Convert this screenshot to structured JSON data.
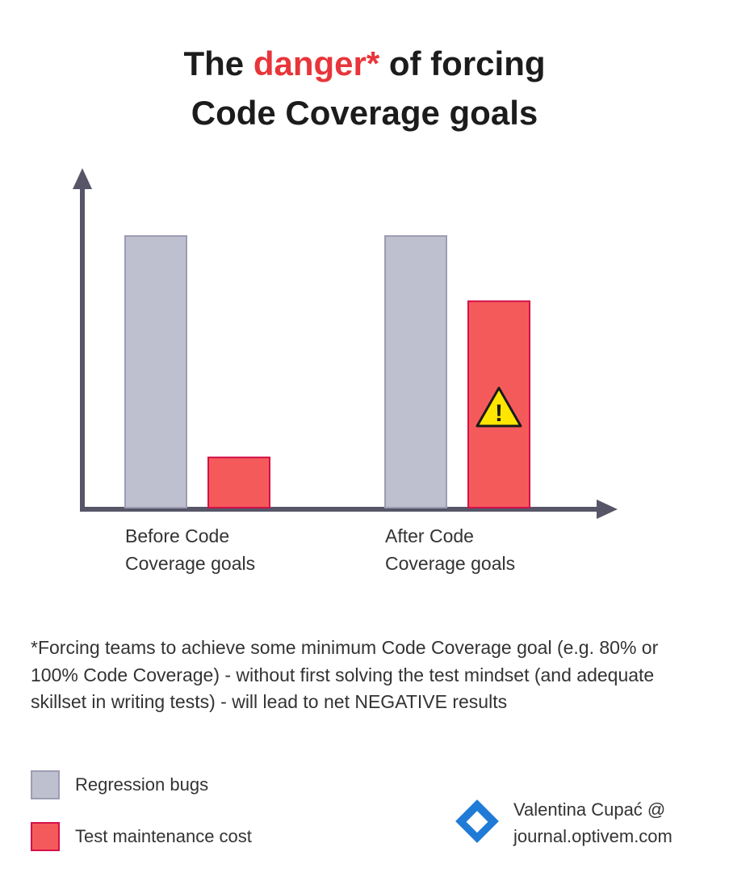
{
  "title": {
    "line1_pre": "The ",
    "line1_accent": "danger*",
    "line1_post": " of forcing",
    "line2": "Code Coverage goals",
    "accent_color": "#e8353a"
  },
  "chart_data": {
    "type": "bar",
    "categories": [
      "Before Code\nCoverage goals",
      "After Code\nCoverage goals"
    ],
    "series": [
      {
        "name": "Regression bugs",
        "values": [
          10,
          10
        ],
        "color": "#bebfcf",
        "stroke": "#9c9db3"
      },
      {
        "name": "Test maintenance cost",
        "values": [
          1.85,
          7.6
        ],
        "color": "#f55a5a",
        "stroke": "#d3114a"
      }
    ],
    "ylim": [
      0,
      11.1
    ],
    "axes": "arrows",
    "tick_labels": false,
    "grid": false,
    "annotation": {
      "icon": "warning-icon",
      "symbol": "!",
      "series": "Test maintenance cost",
      "category": "After Code\nCoverage goals"
    }
  },
  "footnote": "*Forcing teams to achieve some minimum Code Coverage goal (e.g. 80% or 100% Code Coverage) - without first solving the test mindset (and adequate skillset in writing tests) - will lead to net NEGATIVE results",
  "legend": [
    {
      "label": "Regression bugs",
      "color": "#bebfcf",
      "border": "#9c9db3"
    },
    {
      "label": "Test maintenance cost",
      "color": "#f55a5a",
      "border": "#d3114a"
    }
  ],
  "credit": {
    "text": "Valentina Cupać @\njournal.optivem.com",
    "logo": "diamond-logo-icon",
    "logo_color": "#1f7bd6"
  }
}
